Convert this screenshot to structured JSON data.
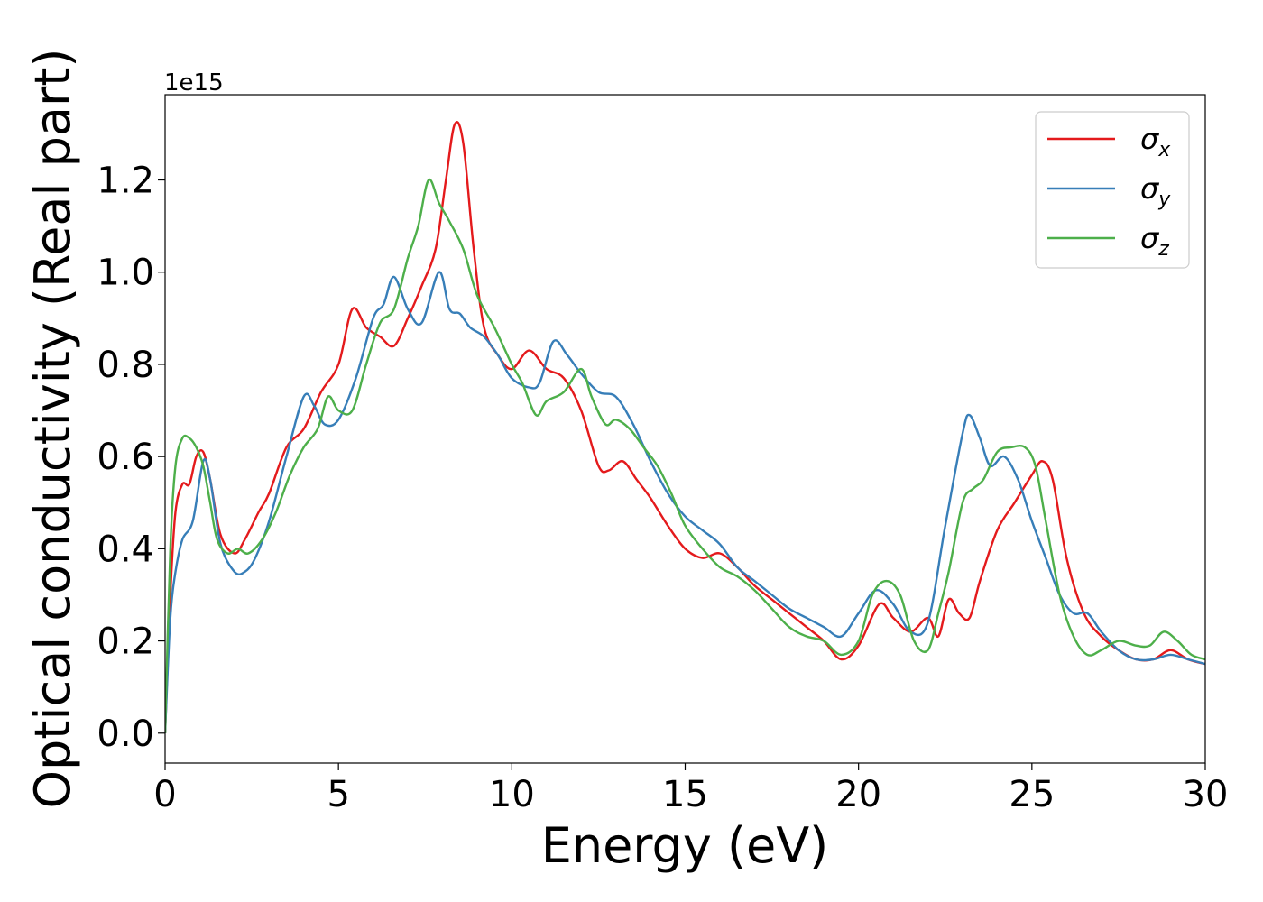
{
  "chart_data": {
    "type": "line",
    "xlabel": "Energy (eV)",
    "ylabel": "Optical conductivity (Real part)",
    "y_offset_label": "1e15",
    "xlim": [
      0,
      30
    ],
    "ylim": [
      -0.065,
      1.385
    ],
    "x_ticks": [
      0,
      5,
      10,
      15,
      20,
      25,
      30
    ],
    "x_tick_labels": [
      "0",
      "5",
      "10",
      "15",
      "20",
      "25",
      "30"
    ],
    "y_ticks": [
      0.0,
      0.2,
      0.4,
      0.6,
      0.8,
      1.0,
      1.2
    ],
    "y_tick_labels": [
      "0.0",
      "0.2",
      "0.4",
      "0.6",
      "0.8",
      "1.0",
      "1.2"
    ],
    "grid": false,
    "legend_position": "top-right",
    "series": [
      {
        "name": "σx",
        "base": "σ",
        "sub": "x",
        "color": "#e41a1c",
        "x": [
          0,
          0.15,
          0.3,
          0.5,
          0.7,
          0.9,
          1.1,
          1.3,
          1.6,
          2.0,
          2.3,
          2.7,
          3.0,
          3.5,
          4.0,
          4.5,
          5.0,
          5.4,
          5.8,
          6.2,
          6.6,
          7.0,
          7.4,
          7.8,
          8.1,
          8.35,
          8.6,
          8.9,
          9.2,
          9.6,
          10.0,
          10.5,
          11.0,
          11.5,
          12.0,
          12.5,
          12.8,
          13.2,
          13.6,
          14.0,
          14.5,
          15.0,
          15.5,
          16.0,
          16.5,
          17.0,
          17.5,
          18.0,
          18.5,
          19.0,
          19.5,
          20.0,
          20.6,
          21.0,
          21.5,
          22.0,
          22.3,
          22.6,
          22.9,
          23.2,
          23.5,
          24.0,
          24.5,
          25.0,
          25.3,
          25.6,
          26.0,
          26.5,
          27.0,
          27.5,
          28.0,
          28.5,
          29.0,
          29.5,
          30.0
        ],
        "y": [
          0.0,
          0.3,
          0.48,
          0.54,
          0.54,
          0.6,
          0.61,
          0.55,
          0.43,
          0.39,
          0.42,
          0.48,
          0.52,
          0.62,
          0.66,
          0.74,
          0.8,
          0.92,
          0.88,
          0.86,
          0.84,
          0.9,
          0.97,
          1.05,
          1.2,
          1.32,
          1.28,
          1.05,
          0.88,
          0.82,
          0.79,
          0.83,
          0.79,
          0.77,
          0.7,
          0.58,
          0.57,
          0.59,
          0.55,
          0.51,
          0.45,
          0.4,
          0.38,
          0.39,
          0.36,
          0.32,
          0.29,
          0.26,
          0.23,
          0.2,
          0.16,
          0.19,
          0.28,
          0.25,
          0.22,
          0.25,
          0.21,
          0.29,
          0.26,
          0.25,
          0.33,
          0.44,
          0.5,
          0.56,
          0.59,
          0.55,
          0.38,
          0.26,
          0.21,
          0.18,
          0.16,
          0.16,
          0.18,
          0.16,
          0.15
        ]
      },
      {
        "name": "σy",
        "base": "σ",
        "sub": "y",
        "color": "#377eb8",
        "x": [
          0,
          0.15,
          0.3,
          0.5,
          0.8,
          1.1,
          1.3,
          1.6,
          2.0,
          2.3,
          2.6,
          3.0,
          3.5,
          4.0,
          4.3,
          4.6,
          5.0,
          5.5,
          6.0,
          6.3,
          6.6,
          7.0,
          7.4,
          7.9,
          8.2,
          8.5,
          8.8,
          9.2,
          9.6,
          10.0,
          10.5,
          10.8,
          11.2,
          11.6,
          12.0,
          12.5,
          13.0,
          13.5,
          14.0,
          14.5,
          15.0,
          15.5,
          16.0,
          16.5,
          17.0,
          17.5,
          18.0,
          18.5,
          19.0,
          19.5,
          20.0,
          20.5,
          21.0,
          21.5,
          22.0,
          22.5,
          23.0,
          23.2,
          23.5,
          23.8,
          24.2,
          24.6,
          25.0,
          25.4,
          25.8,
          26.2,
          26.6,
          27.0,
          27.5,
          28.0,
          28.5,
          29.0,
          29.5,
          30.0
        ],
        "y": [
          0.0,
          0.25,
          0.35,
          0.42,
          0.46,
          0.59,
          0.55,
          0.41,
          0.35,
          0.35,
          0.38,
          0.46,
          0.6,
          0.73,
          0.71,
          0.67,
          0.68,
          0.77,
          0.9,
          0.93,
          0.99,
          0.92,
          0.89,
          1.0,
          0.92,
          0.91,
          0.88,
          0.86,
          0.82,
          0.77,
          0.75,
          0.76,
          0.85,
          0.82,
          0.78,
          0.74,
          0.73,
          0.67,
          0.59,
          0.52,
          0.47,
          0.44,
          0.41,
          0.36,
          0.33,
          0.3,
          0.27,
          0.25,
          0.23,
          0.21,
          0.26,
          0.31,
          0.28,
          0.22,
          0.24,
          0.45,
          0.65,
          0.69,
          0.64,
          0.58,
          0.6,
          0.55,
          0.46,
          0.38,
          0.3,
          0.26,
          0.26,
          0.22,
          0.18,
          0.16,
          0.16,
          0.17,
          0.16,
          0.15
        ]
      },
      {
        "name": "σz",
        "base": "σ",
        "sub": "z",
        "color": "#4daf4a",
        "x": [
          0,
          0.15,
          0.3,
          0.5,
          0.7,
          0.9,
          1.1,
          1.3,
          1.5,
          1.8,
          2.1,
          2.4,
          2.8,
          3.2,
          3.6,
          4.0,
          4.4,
          4.7,
          5.0,
          5.4,
          5.8,
          6.2,
          6.6,
          7.0,
          7.3,
          7.6,
          7.9,
          8.2,
          8.6,
          9.0,
          9.5,
          10.0,
          10.3,
          10.7,
          11.0,
          11.5,
          12.0,
          12.3,
          12.7,
          13.0,
          13.4,
          13.8,
          14.2,
          14.6,
          15.0,
          15.5,
          16.0,
          16.5,
          17.0,
          17.5,
          18.0,
          18.5,
          19.0,
          19.5,
          20.0,
          20.4,
          20.8,
          21.2,
          21.6,
          22.0,
          22.3,
          22.6,
          23.0,
          23.3,
          23.6,
          24.0,
          24.4,
          24.8,
          25.1,
          25.4,
          25.8,
          26.2,
          26.6,
          27.0,
          27.5,
          28.0,
          28.4,
          28.8,
          29.2,
          29.6,
          30.0
        ],
        "y": [
          0.0,
          0.4,
          0.58,
          0.64,
          0.64,
          0.62,
          0.58,
          0.5,
          0.42,
          0.39,
          0.4,
          0.39,
          0.42,
          0.48,
          0.56,
          0.62,
          0.66,
          0.73,
          0.7,
          0.7,
          0.8,
          0.89,
          0.92,
          1.03,
          1.1,
          1.2,
          1.15,
          1.11,
          1.05,
          0.95,
          0.88,
          0.8,
          0.76,
          0.69,
          0.72,
          0.74,
          0.79,
          0.73,
          0.67,
          0.68,
          0.66,
          0.62,
          0.58,
          0.52,
          0.45,
          0.4,
          0.36,
          0.34,
          0.31,
          0.27,
          0.23,
          0.21,
          0.2,
          0.17,
          0.2,
          0.3,
          0.33,
          0.3,
          0.2,
          0.18,
          0.26,
          0.35,
          0.5,
          0.53,
          0.55,
          0.61,
          0.62,
          0.62,
          0.58,
          0.46,
          0.3,
          0.21,
          0.17,
          0.18,
          0.2,
          0.19,
          0.19,
          0.22,
          0.2,
          0.17,
          0.16
        ]
      }
    ]
  }
}
